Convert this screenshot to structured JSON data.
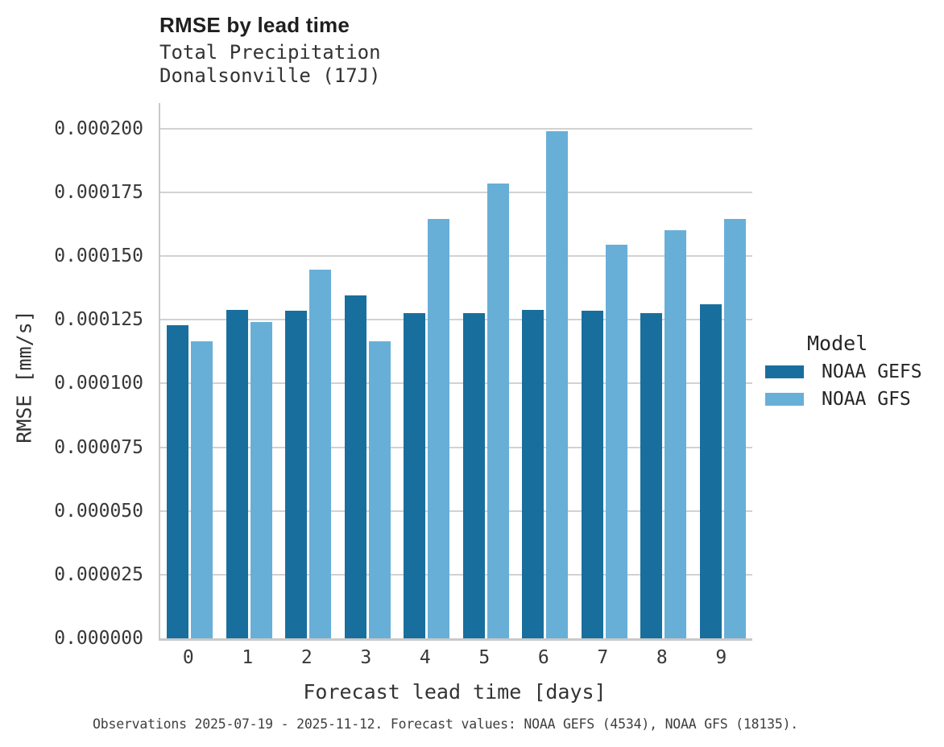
{
  "header": {
    "title": "RMSE by lead time",
    "subtitle": "Total Precipitation\nDonalsonville (17J)"
  },
  "caption": "Observations 2025-07-19 - 2025-11-12. Forecast values: NOAA GEFS (4534), NOAA GFS (18135).",
  "chart_data": {
    "type": "bar",
    "title": "RMSE by lead time",
    "subtitle_lines": [
      "Total Precipitation",
      "Donalsonville (17J)"
    ],
    "xlabel": "Forecast lead time [days]",
    "ylabel": "RMSE [mm/s]",
    "categories": [
      "0",
      "1",
      "2",
      "3",
      "4",
      "5",
      "6",
      "7",
      "8",
      "9"
    ],
    "series": [
      {
        "name": "NOAA GEFS",
        "color": "#186f9e",
        "values": [
          0.000123,
          0.000129,
          0.0001285,
          0.0001345,
          0.0001275,
          0.0001275,
          0.000129,
          0.0001285,
          0.0001275,
          0.000131
        ]
      },
      {
        "name": "NOAA GFS",
        "color": "#68afd7",
        "values": [
          0.0001165,
          0.000124,
          0.0001445,
          0.0001165,
          0.0001645,
          0.0001785,
          0.000199,
          0.0001545,
          0.00016,
          0.0001645
        ]
      }
    ],
    "ylim": [
      0,
      0.00021
    ],
    "yticks": [
      {
        "value": 0.0,
        "label": "0.000000"
      },
      {
        "value": 2.5e-05,
        "label": "0.000025"
      },
      {
        "value": 5e-05,
        "label": "0.000050"
      },
      {
        "value": 7.5e-05,
        "label": "0.000075"
      },
      {
        "value": 0.0001,
        "label": "0.000100"
      },
      {
        "value": 0.000125,
        "label": "0.000125"
      },
      {
        "value": 0.00015,
        "label": "0.000150"
      },
      {
        "value": 0.000175,
        "label": "0.000175"
      },
      {
        "value": 0.0002,
        "label": "0.000200"
      }
    ],
    "grid": true,
    "legend_title": "Model",
    "legend_position": "right"
  }
}
